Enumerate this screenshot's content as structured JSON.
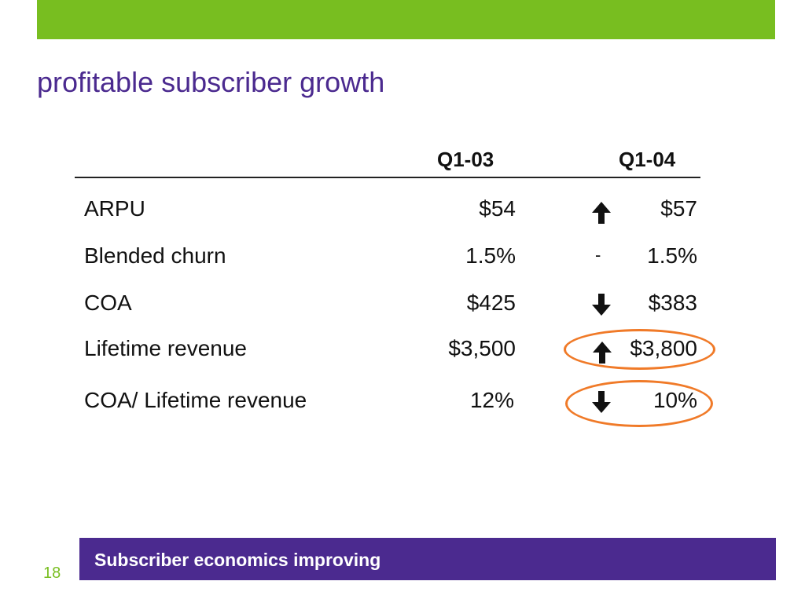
{
  "slide": {
    "title": "profitable subscriber growth",
    "page_number": "18",
    "takeaway": "Subscriber economics improving",
    "colors": {
      "accent_green": "#78be20",
      "brand_purple": "#4b2a8f",
      "highlight_orange": "#f07a28"
    }
  },
  "table": {
    "headers": {
      "period_1": "Q1-03",
      "period_2": "Q1-04"
    },
    "rows": [
      {
        "label": "ARPU",
        "q1_03": "$54",
        "trend": "up-arrow-icon",
        "q1_04": "$57",
        "highlighted": false
      },
      {
        "label": "Blended churn",
        "q1_03": "1.5%",
        "trend": "dash",
        "trend_text": "-",
        "q1_04": "1.5%",
        "highlighted": false
      },
      {
        "label": "COA",
        "q1_03": "$425",
        "trend": "down-arrow-icon",
        "q1_04": "$383",
        "highlighted": false
      },
      {
        "label": "Lifetime revenue",
        "q1_03": "$3,500",
        "trend": "up-arrow-icon",
        "q1_04": "$3,800",
        "highlighted": true
      },
      {
        "label": "COA/ Lifetime revenue",
        "q1_03": "12%",
        "trend": "down-arrow-icon",
        "q1_04": "10%",
        "highlighted": true
      }
    ]
  }
}
